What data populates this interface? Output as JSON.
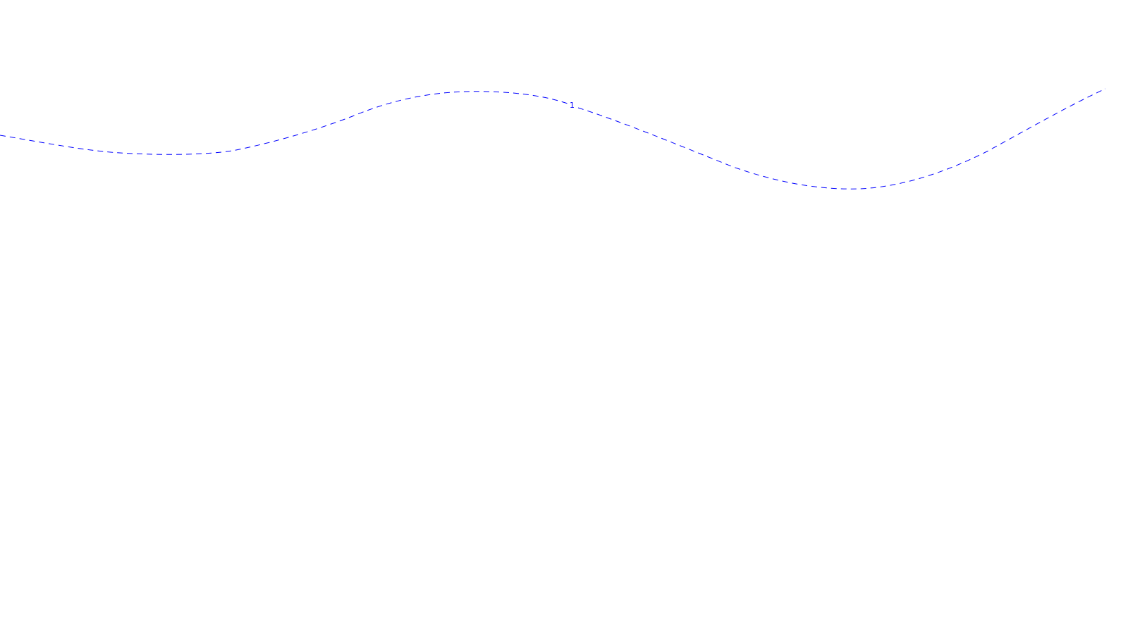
{
  "canvas": {
    "background_color": "#ffffff"
  },
  "contour": {
    "label": "1",
    "color": "#0000ff",
    "style": "dashed"
  }
}
